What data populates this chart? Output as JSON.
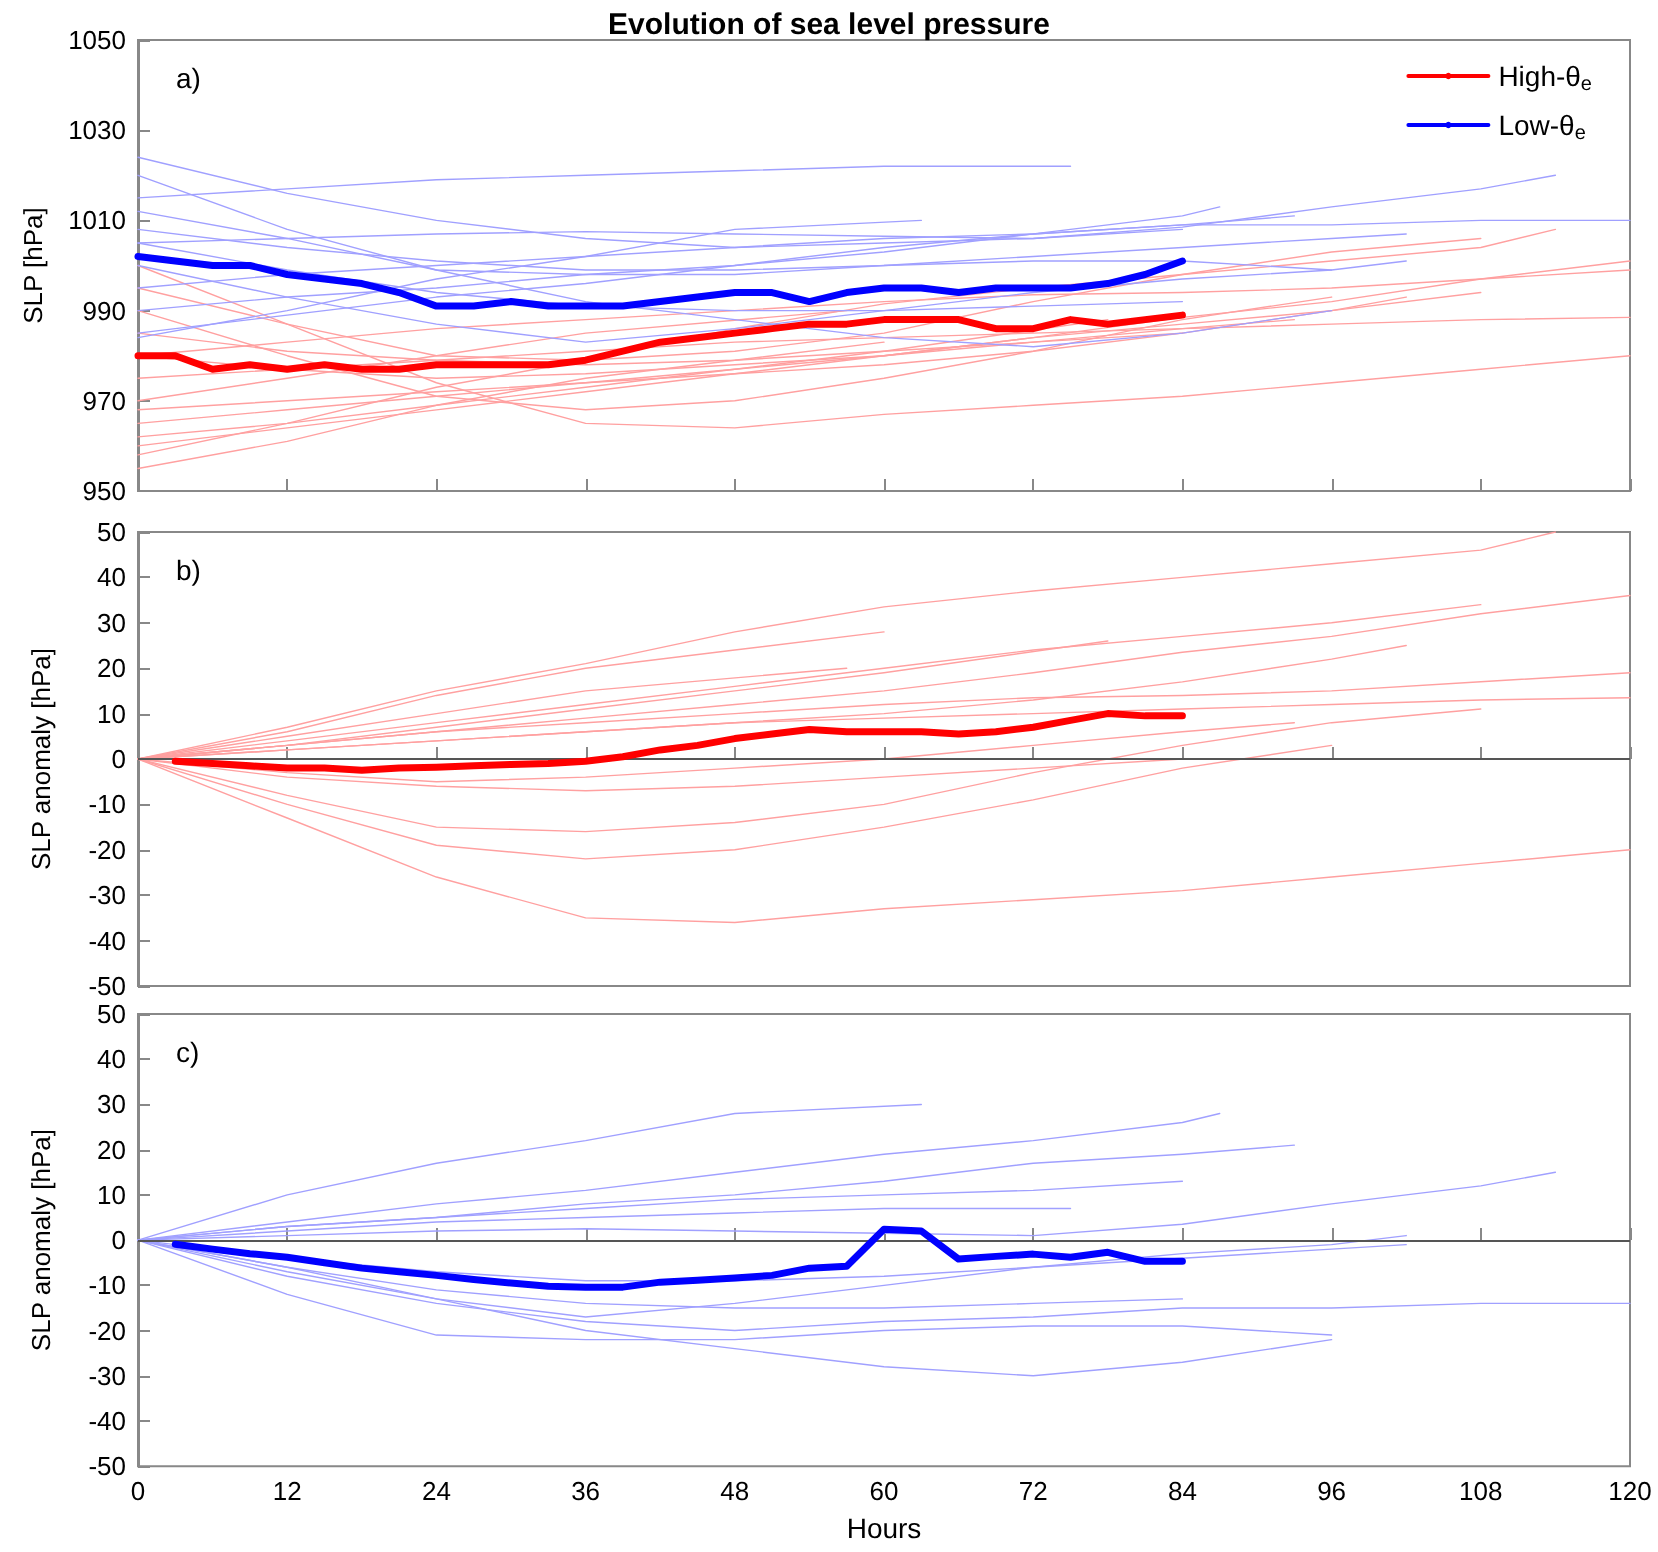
{
  "chart_data": [
    {
      "type": "line",
      "title": "Evolution of sea level pressure",
      "ylabel": "SLP [hPa]",
      "annotations": [
        "a)"
      ],
      "legend": "top right",
      "tick_labels": "y",
      "marker": "none",
      "xlim": [
        0,
        120
      ],
      "xticks": [
        0,
        12,
        24,
        36,
        48,
        60,
        72,
        84,
        96,
        108,
        120
      ],
      "ylim": [
        950,
        1050
      ],
      "yticks": [
        950,
        970,
        990,
        1010,
        1030,
        1050
      ],
      "series": [
        {
          "color": "#ffa0a0",
          "x": [
            0,
            12,
            24,
            36,
            48,
            60,
            72,
            84,
            96,
            108,
            114
          ],
          "values": [
            958,
            965,
            973,
            979,
            986,
            991.5,
            995,
            998,
            1001,
            1004,
            1008
          ]
        },
        {
          "color": "#ffa0a0",
          "x": [
            0,
            12,
            24,
            36,
            48,
            60,
            72,
            84,
            96,
            108,
            120
          ],
          "values": [
            965,
            968,
            971,
            974,
            977,
            980,
            984,
            988.5,
            992,
            997,
            1001
          ]
        },
        {
          "color": "#ffa0a0",
          "x": [
            0,
            12,
            24,
            36,
            48,
            60,
            72,
            84,
            96,
            108
          ],
          "values": [
            960,
            964,
            968,
            972,
            976,
            980,
            984,
            987,
            990,
            994
          ]
        },
        {
          "color": "#ffa0a0",
          "x": [
            0,
            12,
            24,
            36,
            48,
            60,
            72,
            84,
            96,
            108,
            120
          ],
          "values": [
            1000,
            987,
            974,
            965,
            964,
            967,
            969,
            971,
            974,
            977,
            980
          ]
        },
        {
          "color": "#ffa0a0",
          "x": [
            0,
            12,
            24,
            36,
            48,
            60,
            72,
            84,
            96
          ],
          "values": [
            990,
            980,
            971,
            968,
            970,
            975,
            981,
            988,
            993
          ]
        },
        {
          "color": "#ffa0a0",
          "x": [
            0,
            12,
            24,
            36,
            48,
            60,
            72,
            84,
            96,
            108
          ],
          "values": [
            995,
            987,
            980,
            979,
            981,
            985,
            992,
            998,
            1003,
            1006
          ]
        },
        {
          "color": "#ffa0a0",
          "x": [
            0,
            12,
            24,
            36,
            48,
            60
          ],
          "values": [
            955,
            961,
            969,
            975,
            979,
            983
          ]
        },
        {
          "color": "#ffa0a0",
          "x": [
            0,
            12,
            24,
            36,
            48,
            60,
            78
          ],
          "values": [
            962,
            965,
            969,
            973,
            977,
            981,
            988
          ]
        },
        {
          "color": "#ffa0a0",
          "x": [
            0,
            12,
            24,
            36,
            48,
            60,
            72,
            84,
            96,
            108,
            120
          ],
          "values": [
            975,
            977,
            979,
            981,
            983,
            984,
            985,
            986,
            987,
            988,
            988.5
          ]
        },
        {
          "color": "#ffa0a0",
          "x": [
            0,
            12,
            24,
            36,
            48,
            60,
            72,
            84,
            96,
            108,
            120
          ],
          "values": [
            980,
            983,
            986,
            988,
            990,
            992,
            993.5,
            994,
            995,
            997,
            999
          ]
        },
        {
          "color": "#ffa0a0",
          "x": [
            0,
            12,
            24,
            36,
            48,
            60,
            72,
            84
          ],
          "values": [
            985,
            981,
            979,
            978,
            979,
            981,
            983,
            985
          ]
        },
        {
          "color": "#ffa0a0",
          "x": [
            0,
            12,
            24,
            36,
            48,
            60,
            72,
            84,
            96,
            102
          ],
          "values": [
            968,
            970,
            972,
            974,
            976,
            978,
            981,
            985,
            990,
            993
          ]
        },
        {
          "color": "#ffa0a0",
          "x": [
            0,
            12,
            24,
            36,
            57
          ],
          "values": [
            970,
            975,
            980,
            985,
            990
          ]
        },
        {
          "color": "#ffa0a0",
          "x": [
            0,
            12,
            24,
            36,
            48,
            60,
            72,
            84,
            93
          ],
          "values": [
            980,
            977,
            975,
            976,
            978,
            980,
            983,
            986,
            988
          ]
        },
        {
          "color": "#a0a0ff",
          "x": [
            0,
            12,
            24,
            36,
            48,
            63
          ],
          "values": [
            984,
            990,
            997,
            1002,
            1008,
            1010
          ]
        },
        {
          "color": "#a0a0ff",
          "x": [
            0,
            12,
            24,
            36,
            48,
            60,
            72,
            84,
            87
          ],
          "values": [
            985,
            989,
            993,
            996,
            1000,
            1004,
            1007,
            1011,
            1013
          ]
        },
        {
          "color": "#a0a0ff",
          "x": [
            0,
            12,
            24,
            36,
            48,
            60,
            72,
            84,
            93
          ],
          "values": [
            990,
            993,
            995,
            998,
            1000,
            1003,
            1007,
            1009,
            1011
          ]
        },
        {
          "color": "#a0a0ff",
          "x": [
            0,
            12,
            24,
            36,
            48,
            60,
            72,
            84,
            96,
            108,
            114
          ],
          "values": [
            1005,
            1006,
            1007,
            1007.5,
            1007,
            1006.5,
            1006,
            1008.5,
            1013,
            1017,
            1020
          ]
        },
        {
          "color": "#a0a0ff",
          "x": [
            0,
            12,
            24,
            36,
            48,
            60,
            72,
            84,
            96
          ],
          "values": [
            1012,
            1006,
            999,
            992,
            988,
            984,
            982,
            985,
            990
          ]
        },
        {
          "color": "#a0a0ff",
          "x": [
            0,
            12,
            24,
            36,
            48,
            60,
            72,
            84,
            96
          ],
          "values": [
            1020,
            1008,
            999,
            998,
            998,
            1000,
            1001,
            1001,
            999
          ]
        },
        {
          "color": "#a0a0ff",
          "x": [
            0,
            12,
            24,
            36,
            48,
            60,
            72,
            84,
            96,
            108,
            120
          ],
          "values": [
            1024,
            1016,
            1010,
            1006,
            1004,
            1006,
            1007,
            1009,
            1009,
            1010,
            1010
          ]
        },
        {
          "color": "#a0a0ff",
          "x": [
            0,
            12,
            24,
            36,
            48,
            60,
            72,
            84,
            96,
            102
          ],
          "values": [
            1000,
            993,
            987,
            983,
            986,
            990,
            994,
            997,
            999,
            1001
          ]
        },
        {
          "color": "#a0a0ff",
          "x": [
            0,
            12,
            24,
            36,
            48,
            60,
            72,
            84
          ],
          "values": [
            995,
            998,
            1000,
            1002,
            1004,
            1005,
            1006,
            1008
          ]
        },
        {
          "color": "#a0a0ff",
          "x": [
            0,
            12,
            24,
            36,
            48,
            60,
            75
          ],
          "values": [
            1015,
            1017,
            1019,
            1020,
            1021,
            1022,
            1022
          ]
        },
        {
          "color": "#a0a0ff",
          "x": [
            0,
            12,
            24,
            36,
            48,
            60,
            72,
            84,
            96,
            102
          ],
          "values": [
            1008,
            1004,
            1001,
            999,
            999,
            1000,
            1002,
            1004,
            1006,
            1007
          ]
        },
        {
          "color": "#a0a0ff",
          "x": [
            0,
            12,
            24,
            36,
            48,
            60,
            72,
            84
          ],
          "values": [
            1005,
            999,
            994,
            991,
            990,
            990,
            991,
            992
          ]
        },
        {
          "name": "High-θ$_{e}$",
          "color": "#ff0000",
          "x": [
            0,
            3,
            6,
            9,
            12,
            15,
            18,
            21,
            24,
            27,
            30,
            33,
            36,
            39,
            42,
            45,
            48,
            51,
            54,
            57,
            60,
            63,
            66,
            69,
            72,
            75,
            78,
            81,
            84
          ],
          "values": [
            980,
            980,
            977,
            978,
            977,
            978,
            977,
            977,
            978,
            978,
            978,
            978,
            979,
            981,
            983,
            984,
            985,
            986,
            987,
            987,
            988,
            988,
            988,
            986,
            986,
            988,
            987,
            988,
            989
          ]
        },
        {
          "name": "Low-θ$_{e}$",
          "color": "#0000ff",
          "x": [
            0,
            3,
            6,
            9,
            12,
            15,
            18,
            21,
            24,
            27,
            30,
            33,
            36,
            39,
            42,
            45,
            48,
            51,
            54,
            57,
            60,
            63,
            66,
            69,
            72,
            75,
            78,
            81,
            84
          ],
          "values": [
            1002,
            1001,
            1000,
            1000,
            998,
            997,
            996,
            994,
            991,
            991,
            992,
            991,
            991,
            991,
            992,
            993,
            994,
            994,
            992,
            994,
            995,
            995,
            994,
            995,
            995,
            995,
            996,
            998,
            1001
          ]
        }
      ]
    },
    {
      "type": "line",
      "ylabel": "SLP anomaly [hPa]",
      "annotations": [
        "b)"
      ],
      "tick_labels": "y",
      "marker": "none",
      "xlim": [
        0,
        120
      ],
      "xticks": [
        0,
        12,
        24,
        36,
        48,
        60,
        72,
        84,
        96,
        108,
        120
      ],
      "ylim": [
        -50,
        50
      ],
      "yticks": [
        -50,
        -40,
        -30,
        -20,
        -10,
        0,
        10,
        20,
        30,
        40,
        50
      ],
      "ref_lines": [
        {
          "axis": "y",
          "value": 0,
          "color": "#555555"
        }
      ],
      "series": [
        {
          "color": "#ffa0a0",
          "x": [
            0,
            12,
            24,
            36,
            48,
            60,
            72,
            84,
            96,
            108,
            114
          ],
          "values": [
            0,
            7,
            15,
            21,
            28,
            33.5,
            37,
            40,
            43,
            46,
            50
          ]
        },
        {
          "color": "#ffa0a0",
          "x": [
            0,
            12,
            24,
            36,
            48,
            60,
            72,
            84,
            96,
            108,
            120
          ],
          "values": [
            0,
            3,
            6,
            9,
            12,
            15,
            19,
            23.5,
            27,
            32,
            36
          ]
        },
        {
          "color": "#ffa0a0",
          "x": [
            0,
            12,
            24,
            36,
            48,
            60,
            72,
            84,
            96,
            108
          ],
          "values": [
            0,
            4,
            8,
            12,
            16,
            20,
            24,
            27,
            30,
            34
          ]
        },
        {
          "color": "#ffa0a0",
          "x": [
            0,
            12,
            24,
            36,
            48,
            60,
            72,
            84,
            96,
            108,
            120
          ],
          "values": [
            0,
            -13,
            -26,
            -35,
            -36,
            -33,
            -31,
            -29,
            -26,
            -23,
            -20
          ]
        },
        {
          "color": "#ffa0a0",
          "x": [
            0,
            12,
            24,
            36,
            48,
            60,
            72,
            84,
            96
          ],
          "values": [
            0,
            -10,
            -19,
            -22,
            -20,
            -15,
            -9,
            -2,
            3
          ]
        },
        {
          "color": "#ffa0a0",
          "x": [
            0,
            12,
            24,
            36,
            48,
            60,
            72,
            84,
            96,
            108
          ],
          "values": [
            0,
            -8,
            -15,
            -16,
            -14,
            -10,
            -3,
            3,
            8,
            11
          ]
        },
        {
          "color": "#ffa0a0",
          "x": [
            0,
            12,
            24,
            36,
            48,
            60
          ],
          "values": [
            0,
            6,
            14,
            20,
            24,
            28
          ]
        },
        {
          "color": "#ffa0a0",
          "x": [
            0,
            12,
            24,
            36,
            48,
            60,
            78
          ],
          "values": [
            0,
            3,
            7,
            11,
            15,
            19,
            26
          ]
        },
        {
          "color": "#ffa0a0",
          "x": [
            0,
            12,
            24,
            36,
            48,
            60,
            72,
            84,
            96,
            108,
            120
          ],
          "values": [
            0,
            2,
            4,
            6,
            8,
            9,
            10,
            11,
            12,
            13,
            13.5
          ]
        },
        {
          "color": "#ffa0a0",
          "x": [
            0,
            12,
            24,
            36,
            48,
            60,
            72,
            84,
            96,
            108,
            120
          ],
          "values": [
            0,
            3,
            6,
            8,
            10,
            12,
            13.5,
            14,
            15,
            17,
            19
          ]
        },
        {
          "color": "#ffa0a0",
          "x": [
            0,
            12,
            24,
            36,
            48,
            60,
            72,
            84
          ],
          "values": [
            0,
            -4,
            -6,
            -7,
            -6,
            -4,
            -2,
            0
          ]
        },
        {
          "color": "#ffa0a0",
          "x": [
            0,
            12,
            24,
            36,
            48,
            60,
            72,
            84,
            96,
            102
          ],
          "values": [
            0,
            2,
            4,
            6,
            8,
            10,
            13,
            17,
            22,
            25
          ]
        },
        {
          "color": "#ffa0a0",
          "x": [
            0,
            12,
            24,
            36,
            57
          ],
          "values": [
            0,
            5,
            10,
            15,
            20
          ]
        },
        {
          "color": "#ffa0a0",
          "x": [
            0,
            12,
            24,
            36,
            48,
            60,
            72,
            84,
            93
          ],
          "values": [
            0,
            -3,
            -5,
            -4,
            -2,
            0,
            3,
            6,
            8
          ]
        },
        {
          "color": "#ff0000",
          "x": [
            3,
            6,
            9,
            12,
            15,
            18,
            21,
            24,
            27,
            30,
            33,
            36,
            39,
            42,
            45,
            48,
            51,
            54,
            57,
            60,
            63,
            66,
            69,
            72,
            75,
            78,
            81,
            84
          ],
          "values": [
            -0.5,
            -1,
            -1.5,
            -2,
            -2,
            -2.5,
            -2,
            -1.8,
            -1.5,
            -1.2,
            -1,
            -0.5,
            0.5,
            2,
            3,
            4.5,
            5.5,
            6.5,
            6,
            6,
            6,
            5.5,
            6,
            7,
            8.5,
            10,
            9.5,
            9.5
          ]
        }
      ]
    },
    {
      "type": "line",
      "ylabel": "SLP anomaly [hPa]",
      "xlabel": "Hours",
      "annotations": [
        "c)"
      ],
      "marker": "none",
      "xlim": [
        0,
        120
      ],
      "xticks": [
        0,
        12,
        24,
        36,
        48,
        60,
        72,
        84,
        96,
        108,
        120
      ],
      "ylim": [
        -50,
        50
      ],
      "yticks": [
        -50,
        -40,
        -30,
        -20,
        -10,
        0,
        10,
        20,
        30,
        40,
        50
      ],
      "ref_lines": [
        {
          "axis": "y",
          "value": 0,
          "color": "#555555"
        }
      ],
      "series": [
        {
          "color": "#a0a0ff",
          "x": [
            0,
            12,
            24,
            36,
            48,
            63
          ],
          "values": [
            0,
            10,
            17,
            22,
            28,
            30
          ]
        },
        {
          "color": "#a0a0ff",
          "x": [
            0,
            12,
            24,
            36,
            48,
            60,
            72,
            84,
            87
          ],
          "values": [
            0,
            4,
            8,
            11,
            15,
            19,
            22,
            26,
            28
          ]
        },
        {
          "color": "#a0a0ff",
          "x": [
            0,
            12,
            24,
            36,
            48,
            60,
            72,
            84,
            93
          ],
          "values": [
            0,
            3,
            5,
            8,
            10,
            13,
            17,
            19,
            21
          ]
        },
        {
          "color": "#a0a0ff",
          "x": [
            0,
            12,
            24,
            36,
            48,
            60,
            72,
            84,
            96,
            108,
            114
          ],
          "values": [
            0,
            1,
            2,
            2.5,
            2,
            1.5,
            1,
            3.5,
            8,
            12,
            15
          ]
        },
        {
          "color": "#a0a0ff",
          "x": [
            0,
            12,
            24,
            36,
            48,
            60,
            72,
            84,
            96
          ],
          "values": [
            0,
            -6,
            -13,
            -20,
            -24,
            -28,
            -30,
            -27,
            -22
          ]
        },
        {
          "color": "#a0a0ff",
          "x": [
            0,
            12,
            24,
            36,
            48,
            60,
            72,
            84,
            96
          ],
          "values": [
            0,
            -12,
            -21,
            -22,
            -22,
            -20,
            -19,
            -19,
            -21
          ]
        },
        {
          "color": "#a0a0ff",
          "x": [
            0,
            12,
            24,
            36,
            48,
            60,
            72,
            84,
            96,
            108,
            120
          ],
          "values": [
            0,
            -8,
            -14,
            -18,
            -20,
            -18,
            -17,
            -15,
            -15,
            -14,
            -14
          ]
        },
        {
          "color": "#a0a0ff",
          "x": [
            0,
            12,
            24,
            36,
            48,
            60,
            72,
            84,
            96,
            102
          ],
          "values": [
            0,
            -7,
            -13,
            -17,
            -14,
            -10,
            -6,
            -3,
            -1,
            1
          ]
        },
        {
          "color": "#a0a0ff",
          "x": [
            0,
            12,
            24,
            36,
            48,
            60,
            72,
            84
          ],
          "values": [
            0,
            3,
            5,
            7,
            9,
            10,
            11,
            13
          ]
        },
        {
          "color": "#a0a0ff",
          "x": [
            0,
            12,
            24,
            36,
            48,
            60,
            75
          ],
          "values": [
            0,
            2,
            4,
            5,
            6,
            7,
            7
          ]
        },
        {
          "color": "#a0a0ff",
          "x": [
            0,
            12,
            24,
            36,
            48,
            60,
            72,
            84,
            96,
            102
          ],
          "values": [
            0,
            -4,
            -7,
            -9,
            -9,
            -8,
            -6,
            -4,
            -2,
            -1
          ]
        },
        {
          "color": "#a0a0ff",
          "x": [
            0,
            12,
            24,
            36,
            48,
            60,
            72,
            84
          ],
          "values": [
            0,
            -6,
            -11,
            -14,
            -15,
            -15,
            -14,
            -13
          ]
        },
        {
          "color": "#0000ff",
          "x": [
            3,
            6,
            9,
            12,
            15,
            18,
            21,
            24,
            27,
            30,
            33,
            36,
            39,
            42,
            45,
            48,
            51,
            54,
            57,
            60,
            63,
            66,
            69,
            72,
            75,
            78,
            81,
            84
          ],
          "values": [
            -0.9,
            -2,
            -3,
            -3.8,
            -5,
            -6.2,
            -7,
            -7.8,
            -8.7,
            -9.5,
            -10.2,
            -10.4,
            -10.4,
            -9.3,
            -8.9,
            -8.4,
            -7.8,
            -6.2,
            -5.8,
            2.4,
            2,
            -4.2,
            -3.6,
            -3.1,
            -3.8,
            -2.7,
            -4.7,
            -4.7
          ]
        }
      ]
    }
  ]
}
